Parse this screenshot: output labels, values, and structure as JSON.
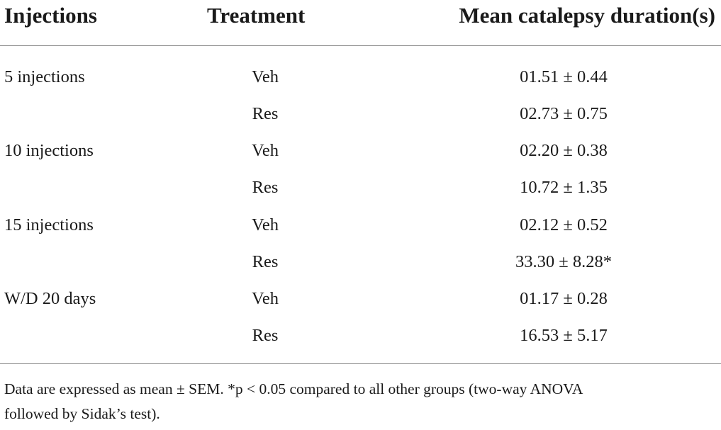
{
  "table": {
    "headers": {
      "injections": "Injections",
      "treatment": "Treatment",
      "duration": "Mean catalepsy duration(s)"
    },
    "rows": [
      {
        "injections": "5 injections",
        "treatment": "Veh",
        "value": "01.51 ± 0.44"
      },
      {
        "injections": "",
        "treatment": "Res",
        "value": "02.73 ± 0.75"
      },
      {
        "injections": "10 injections",
        "treatment": "Veh",
        "value": "02.20 ± 0.38"
      },
      {
        "injections": "",
        "treatment": "Res",
        "value": "10.72 ± 1.35"
      },
      {
        "injections": "15 injections",
        "treatment": "Veh",
        "value": "02.12 ± 0.52"
      },
      {
        "injections": "",
        "treatment": "Res",
        "value": "33.30 ± 8.28*"
      },
      {
        "injections": "W/D 20 days",
        "treatment": "Veh",
        "value": "01.17 ± 0.28"
      },
      {
        "injections": "",
        "treatment": "Res",
        "value": "16.53 ± 5.17"
      }
    ],
    "footnote_line1": "Data are expressed as mean ± SEM. *p < 0.05 compared to all other groups (two-way ANOVA",
    "footnote_line2": "followed by Sidak’s test)."
  }
}
